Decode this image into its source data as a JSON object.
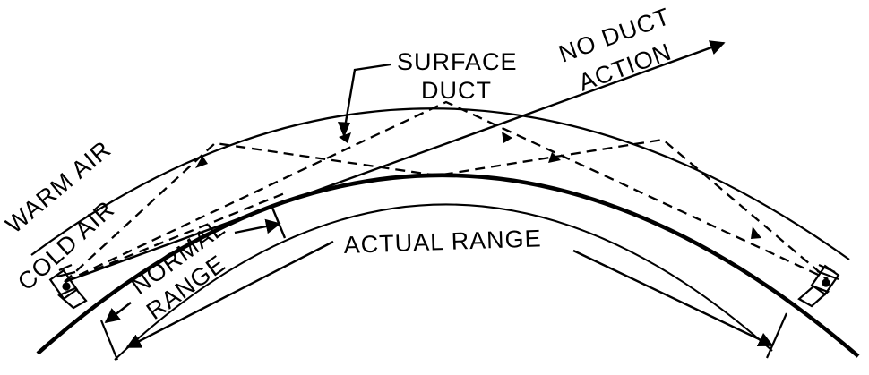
{
  "labels": {
    "surface_duct_line1": "SURFACE",
    "surface_duct_line2": "DUCT",
    "no_duct_line1": "NO DUCT",
    "no_duct_line2": "ACTION",
    "warm_air": "WARM AIR",
    "cold_air": "COLD AIR",
    "normal_range_line1": "NORMAL",
    "normal_range_line2": "RANGE",
    "actual_range": "ACTUAL RANGE"
  },
  "colors": {
    "ink": "#000000",
    "background": "#ffffff"
  },
  "icons": {
    "left": "transmitter-antenna-icon",
    "right": "receiver-antenna-icon"
  }
}
